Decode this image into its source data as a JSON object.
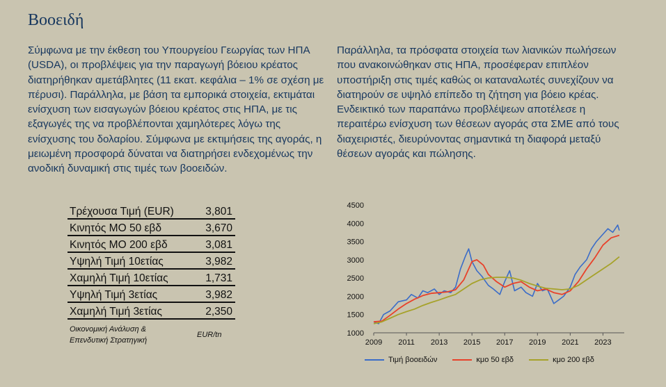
{
  "title": "Βοοειδή",
  "paragraph_left": "Σύμφωνα με την έκθεση του Υπουργείου Γεωργίας των ΗΠΑ (USDA), οι προβλέψεις για την παραγωγή βόειου κρέατος διατηρήθηκαν αμετάβλητες (11 εκατ. κεφάλια – 1% σε σχέση με πέρυσι). Παράλληλα, με βάση τα εμπορικά στοιχεία, εκτιμάται ενίσχυση των εισαγωγών βόειου κρέατος στις ΗΠΑ, με τις εξαγωγές της να προβλέπονται χαμηλότερες λόγω της ενίσχυσης του δολαρίου. Σύμφωνα με εκτιμήσεις της αγοράς, η μειωμένη προσφορά δύναται να διατηρήσει ενδεχομένως την ανοδική δυναμική στις τιμές των βοοειδών.",
  "paragraph_right": "Παράλληλα, τα πρόσφατα στοιχεία των λιανικών πωλήσεων που ανακοινώθηκαν στις ΗΠΑ, προσέφεραν επιπλέον υποστήριξη στις τιμές καθώς οι καταναλωτές συνεχίζουν να διατηρούν σε υψηλό επίπεδο τη ζήτηση για βόειο κρέας. Ενδεικτικό των παραπάνω προβλέψεων αποτέλεσε η περαιτέρω ενίσχυση των θέσεων αγοράς στα ΣΜΕ από τους διαχειριστές, διευρύνοντας σημαντικά τη διαφορά μεταξύ θέσεων αγοράς και πώλησης.",
  "stats": [
    {
      "label": "Τρέχουσα Τιμή (EUR)",
      "value": "3,801"
    },
    {
      "label": "Κινητός ΜΟ 50 εβδ",
      "value": "3,670"
    },
    {
      "label": "Κινητός ΜΟ 200 εβδ",
      "value": "3,081"
    },
    {
      "label": "Υψηλή Τιμή 10ετίας",
      "value": "3,982"
    },
    {
      "label": "Χαμηλή Τιμή 10ετίας",
      "value": "1,731"
    },
    {
      "label": "Υψηλή Τιμή 3ετίας",
      "value": "3,982"
    },
    {
      "label": "Χαμηλή Τιμή 3ετίας",
      "value": "2,350"
    }
  ],
  "footnote": {
    "source": "Οικονομική Ανάλυση & Επενδυτική Στρατηγική",
    "unit": "EUR/tn"
  },
  "chart_data": {
    "type": "line",
    "title": "",
    "xlabel": "",
    "ylabel": "",
    "xlim": [
      2009,
      2024.3
    ],
    "ylim": [
      1000,
      4500
    ],
    "x_ticks": [
      "2009",
      "2011",
      "2013",
      "2015",
      "2017",
      "2019",
      "2021",
      "2023"
    ],
    "y_ticks": [
      "1000",
      "1500",
      "2000",
      "2500",
      "3000",
      "3500",
      "4000",
      "4500"
    ],
    "grid": false,
    "legend": "bottom",
    "series": [
      {
        "name": "Τιμή βοοειδών",
        "color": "#3a6cc8",
        "x": [
          2009.0,
          2009.3,
          2009.6,
          2010.0,
          2010.5,
          2011.0,
          2011.3,
          2011.7,
          2012.0,
          2012.3,
          2012.7,
          2013.0,
          2013.3,
          2013.7,
          2014.0,
          2014.3,
          2014.6,
          2014.8,
          2015.0,
          2015.3,
          2015.6,
          2016.0,
          2016.3,
          2016.7,
          2017.0,
          2017.3,
          2017.6,
          2018.0,
          2018.3,
          2018.7,
          2019.0,
          2019.3,
          2019.6,
          2020.0,
          2020.3,
          2020.6,
          2021.0,
          2021.3,
          2021.6,
          2022.0,
          2022.3,
          2022.6,
          2023.0,
          2023.3,
          2023.6,
          2023.9,
          2024.0
        ],
        "y": [
          1300,
          1250,
          1500,
          1600,
          1850,
          1900,
          2050,
          1950,
          2150,
          2100,
          2200,
          2050,
          2150,
          2100,
          2250,
          2750,
          3100,
          3300,
          2950,
          2700,
          2550,
          2300,
          2200,
          2050,
          2400,
          2700,
          2150,
          2250,
          2100,
          2000,
          2350,
          2150,
          2200,
          1800,
          1900,
          2000,
          2250,
          2600,
          2800,
          3000,
          3300,
          3500,
          3700,
          3850,
          3750,
          3950,
          3801
        ]
      },
      {
        "name": "κμο 50 εβδ",
        "color": "#e8412a",
        "x": [
          2009.0,
          2009.5,
          2010.0,
          2010.5,
          2011.0,
          2011.5,
          2012.0,
          2012.5,
          2013.0,
          2013.5,
          2014.0,
          2014.5,
          2015.0,
          2015.3,
          2015.7,
          2016.0,
          2016.5,
          2017.0,
          2017.5,
          2018.0,
          2018.5,
          2019.0,
          2019.5,
          2020.0,
          2020.5,
          2021.0,
          2021.5,
          2022.0,
          2022.5,
          2023.0,
          2023.5,
          2024.0
        ],
        "y": [
          1300,
          1320,
          1480,
          1650,
          1800,
          1920,
          2020,
          2080,
          2100,
          2120,
          2180,
          2450,
          2950,
          3000,
          2850,
          2600,
          2400,
          2250,
          2350,
          2400,
          2250,
          2150,
          2200,
          2100,
          2050,
          2150,
          2400,
          2750,
          3050,
          3400,
          3600,
          3670
        ]
      },
      {
        "name": "κμο 200 εβδ",
        "color": "#a6a22a",
        "x": [
          2009.0,
          2009.5,
          2010.0,
          2010.5,
          2011.0,
          2011.5,
          2012.0,
          2012.5,
          2013.0,
          2013.5,
          2014.0,
          2014.5,
          2015.0,
          2015.5,
          2016.0,
          2016.5,
          2017.0,
          2017.5,
          2018.0,
          2018.5,
          2019.0,
          2019.5,
          2020.0,
          2020.5,
          2021.0,
          2021.5,
          2022.0,
          2022.5,
          2023.0,
          2023.5,
          2024.0
        ],
        "y": [
          1250,
          1300,
          1400,
          1500,
          1580,
          1650,
          1750,
          1830,
          1900,
          1980,
          2050,
          2200,
          2350,
          2450,
          2500,
          2520,
          2520,
          2500,
          2440,
          2350,
          2280,
          2220,
          2200,
          2180,
          2200,
          2300,
          2450,
          2600,
          2750,
          2900,
          3081
        ]
      }
    ]
  }
}
